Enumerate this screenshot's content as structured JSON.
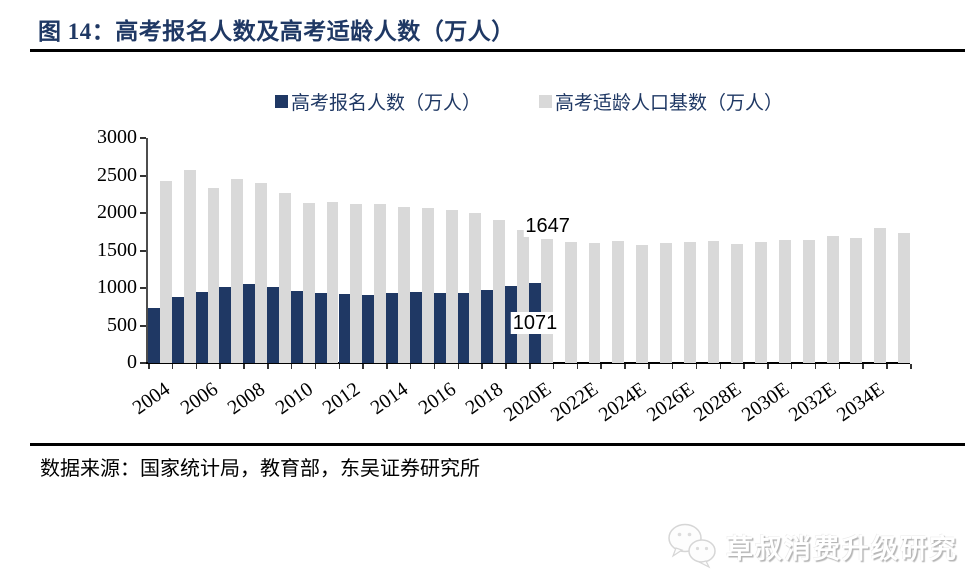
{
  "figure": {
    "title": "图 14：高考报名人数及高考适龄人数（万人）",
    "source": "数据来源：国家统计局，教育部，东吴证券研究所",
    "watermark": "草叔消费升级研究"
  },
  "chart_data": {
    "type": "bar",
    "title": "高考报名人数及高考适龄人数（万人）",
    "categories": [
      "2004",
      "2005",
      "2006",
      "2007",
      "2008",
      "2009",
      "2010",
      "2011",
      "2012",
      "2013",
      "2014",
      "2015",
      "2016",
      "2017",
      "2018",
      "2019",
      "2020E",
      "2021E",
      "2022E",
      "2023E",
      "2024E",
      "2025E",
      "2026E",
      "2027E",
      "2028E",
      "2029E",
      "2030E",
      "2031E",
      "2032E",
      "2033E",
      "2034E",
      "2035E"
    ],
    "xtick_labels": [
      "2004",
      "2006",
      "2008",
      "2010",
      "2012",
      "2014",
      "2016",
      "2018",
      "2020E",
      "2022E",
      "2024E",
      "2026E",
      "2028E",
      "2030E",
      "2032E",
      "2034E"
    ],
    "series": [
      {
        "name": "高考报名人数（万人）",
        "color": "#1f3864",
        "values": [
          729,
          877,
          950,
          1010,
          1050,
          1020,
          957,
          933,
          915,
          912,
          939,
          942,
          940,
          940,
          975,
          1031,
          1071,
          null,
          null,
          null,
          null,
          null,
          null,
          null,
          null,
          null,
          null,
          null,
          null,
          null,
          null,
          null
        ]
      },
      {
        "name": "高考适龄人口基数（万人）",
        "color": "#d9d9d9",
        "values": [
          2430,
          2580,
          2330,
          2450,
          2400,
          2270,
          2135,
          2145,
          2125,
          2120,
          2085,
          2070,
          2040,
          2000,
          1910,
          1780,
          1647,
          1610,
          1600,
          1630,
          1580,
          1600,
          1615,
          1625,
          1590,
          1615,
          1635,
          1645,
          1695,
          1665,
          1800,
          1740
        ]
      }
    ],
    "ylim": [
      0,
      3000
    ],
    "yticks": [
      0,
      500,
      1000,
      1500,
      2000,
      2500,
      3000
    ],
    "grid": false,
    "legend_position": "top",
    "annotations": [
      {
        "text": "1647",
        "series": 1,
        "index": 16,
        "placement": "above"
      },
      {
        "text": "1071",
        "series": 0,
        "index": 16,
        "placement": "inside-bottom"
      }
    ]
  }
}
